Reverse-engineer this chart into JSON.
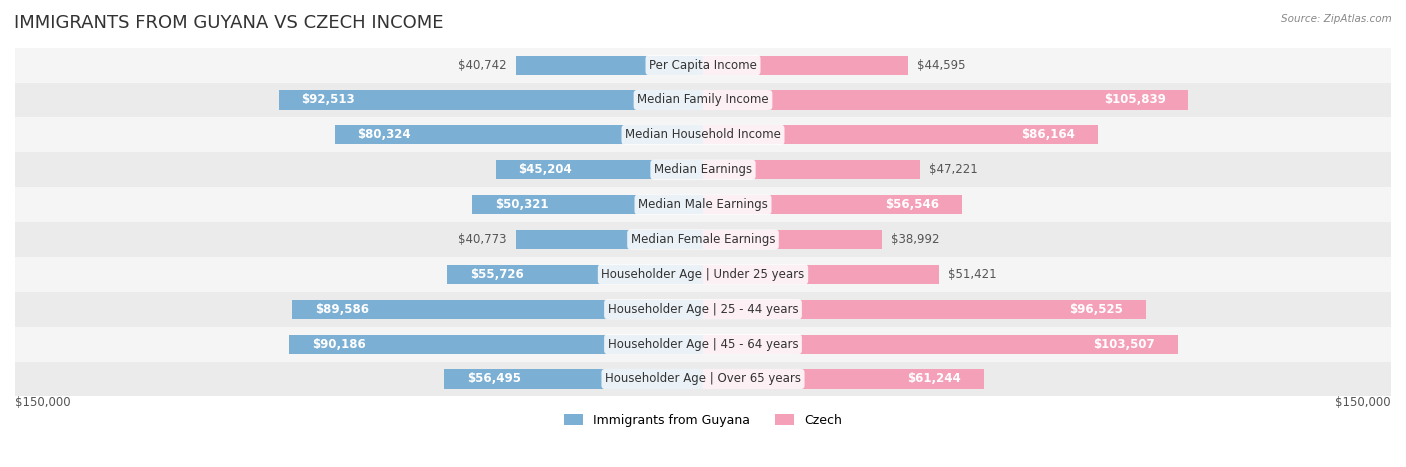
{
  "title": "IMMIGRANTS FROM GUYANA VS CZECH INCOME",
  "source": "Source: ZipAtlas.com",
  "categories": [
    "Per Capita Income",
    "Median Family Income",
    "Median Household Income",
    "Median Earnings",
    "Median Male Earnings",
    "Median Female Earnings",
    "Householder Age | Under 25 years",
    "Householder Age | 25 - 44 years",
    "Householder Age | 45 - 64 years",
    "Householder Age | Over 65 years"
  ],
  "guyana_values": [
    40742,
    92513,
    80324,
    45204,
    50321,
    40773,
    55726,
    89586,
    90186,
    56495
  ],
  "czech_values": [
    44595,
    105839,
    86164,
    47221,
    56546,
    38992,
    51421,
    96525,
    103507,
    61244
  ],
  "guyana_labels": [
    "$40,742",
    "$92,513",
    "$80,324",
    "$45,204",
    "$50,321",
    "$40,773",
    "$55,726",
    "$89,586",
    "$90,186",
    "$56,495"
  ],
  "czech_labels": [
    "$44,595",
    "$105,839",
    "$86,164",
    "$47,221",
    "$56,546",
    "$38,992",
    "$51,421",
    "$96,525",
    "$103,507",
    "$61,244"
  ],
  "guyana_color": "#7bafd4",
  "guyana_color_dark": "#4a90c4",
  "czech_color": "#f4a0b8",
  "czech_color_dark": "#e05080",
  "max_value": 150000,
  "background_color": "#ffffff",
  "row_bg_color": "#f0f0f0",
  "title_fontsize": 13,
  "label_fontsize": 8.5,
  "category_fontsize": 8.5,
  "legend_fontsize": 9
}
